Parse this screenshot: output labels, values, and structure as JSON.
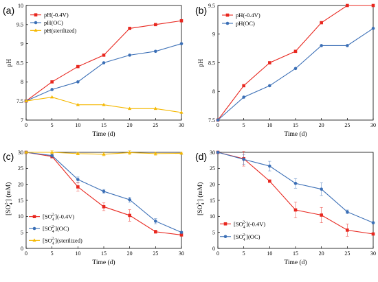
{
  "chart_data": [
    {
      "panel": "(a)",
      "type": "line",
      "xlabel": "Time (d)",
      "ylabel": "pH",
      "xlim": [
        0,
        30
      ],
      "ylim": [
        7,
        10
      ],
      "xticks": [
        0,
        5,
        10,
        15,
        20,
        25,
        30
      ],
      "yticks": [
        7,
        7.5,
        8,
        8.5,
        9,
        9.5,
        10
      ],
      "legend_position": "top-left",
      "x": [
        0,
        5,
        10,
        15,
        20,
        25,
        30
      ],
      "series": [
        {
          "name": "pH(-0.4V)",
          "color": "#e8271f",
          "marker": "square",
          "values": [
            7.5,
            8.0,
            8.4,
            8.7,
            9.4,
            9.5,
            9.6
          ]
        },
        {
          "name": "pH(OC)",
          "color": "#3b6fb6",
          "marker": "circle",
          "values": [
            7.5,
            7.8,
            8.0,
            8.5,
            8.7,
            8.8,
            9.0
          ]
        },
        {
          "name": "pH(sterilized)",
          "color": "#f5b800",
          "marker": "triangle",
          "values": [
            7.5,
            7.6,
            7.4,
            7.4,
            7.3,
            7.3,
            7.2
          ]
        }
      ]
    },
    {
      "panel": "(b)",
      "type": "line",
      "xlabel": "Time (d)",
      "ylabel": "pH",
      "xlim": [
        0,
        30
      ],
      "ylim": [
        7.5,
        9.5
      ],
      "xticks": [
        0,
        5,
        10,
        15,
        20,
        25,
        30
      ],
      "yticks": [
        7.5,
        8,
        8.5,
        9,
        9.5
      ],
      "legend_position": "top-left",
      "x": [
        0,
        5,
        10,
        15,
        20,
        25,
        30
      ],
      "series": [
        {
          "name": "pH(-0.4V)",
          "color": "#e8271f",
          "marker": "square",
          "values": [
            7.5,
            8.1,
            8.5,
            8.7,
            9.2,
            9.5,
            9.5
          ]
        },
        {
          "name": "pH(OC)",
          "color": "#3b6fb6",
          "marker": "circle",
          "values": [
            7.5,
            7.9,
            8.1,
            8.4,
            8.8,
            8.8,
            9.1
          ]
        }
      ]
    },
    {
      "panel": "(c)",
      "type": "line",
      "xlabel": "Time (d)",
      "ylabel_parts": [
        "[SO",
        "4",
        "2-",
        "] (mM)"
      ],
      "xlim": [
        0,
        30
      ],
      "ylim": [
        0,
        30
      ],
      "xticks": [
        0,
        5,
        10,
        15,
        20,
        25,
        30
      ],
      "yticks": [
        0,
        5,
        10,
        15,
        20,
        25,
        30
      ],
      "legend_position": "bottom-left",
      "x": [
        0,
        5,
        10,
        15,
        20,
        25,
        30
      ],
      "series": [
        {
          "name_parts": [
            "[SO",
            "4",
            "2-",
            "](-0.4V)"
          ],
          "color": "#e8271f",
          "marker": "square",
          "values": [
            30.0,
            28.7,
            19.2,
            13.0,
            10.3,
            5.2,
            4.2
          ],
          "errors": [
            0.3,
            0.5,
            1.3,
            1.2,
            1.8,
            0.5,
            0.3
          ]
        },
        {
          "name_parts": [
            "[SO",
            "4",
            "2-",
            "](OC)"
          ],
          "color": "#3b6fb6",
          "marker": "circle",
          "values": [
            30.0,
            29.0,
            21.5,
            17.8,
            15.2,
            8.5,
            5.0
          ],
          "errors": [
            0.3,
            0.5,
            0.8,
            0.6,
            0.8,
            0.8,
            0.3
          ]
        },
        {
          "name_parts": [
            "[SO",
            "4",
            "2-",
            "](sterilized)"
          ],
          "color": "#f5b800",
          "marker": "triangle",
          "values": [
            30.0,
            30.0,
            29.6,
            29.4,
            29.9,
            29.6,
            29.7
          ],
          "errors": [
            0.2,
            0.5,
            0.4,
            0.5,
            0.6,
            0.5,
            0.3
          ]
        }
      ]
    },
    {
      "panel": "(d)",
      "type": "line",
      "xlabel": "Time (d)",
      "ylabel_parts": [
        "[SO",
        "4",
        "2-",
        "] (mM)"
      ],
      "xlim": [
        0,
        30
      ],
      "ylim": [
        0,
        30
      ],
      "xticks": [
        0,
        5,
        10,
        15,
        20,
        25,
        30
      ],
      "yticks": [
        0,
        5,
        10,
        15,
        20,
        25,
        30
      ],
      "legend_position": "bottom-left",
      "x": [
        0,
        5,
        10,
        15,
        20,
        25,
        30
      ],
      "series": [
        {
          "name_parts": [
            "[SO",
            "4",
            "2-",
            "](-0.4V)"
          ],
          "color": "#e8271f",
          "marker": "square",
          "values": [
            30.0,
            28.0,
            21.0,
            12.0,
            10.4,
            5.7,
            4.5
          ],
          "errors": [
            0.2,
            2.3,
            0.4,
            2.5,
            2.4,
            1.9,
            0.3
          ]
        },
        {
          "name_parts": [
            "[SO",
            "4",
            "2-",
            "](OC)"
          ],
          "color": "#3b6fb6",
          "marker": "circle",
          "values": [
            30.0,
            27.8,
            25.7,
            20.3,
            18.5,
            11.4,
            8.0
          ],
          "errors": [
            0.2,
            1.5,
            1.5,
            1.5,
            2.0,
            0.6,
            0.3
          ]
        }
      ]
    }
  ]
}
